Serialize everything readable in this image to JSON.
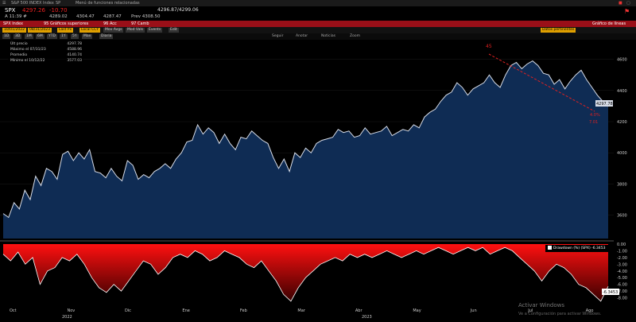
{
  "titlebar": {
    "items": [
      "S&P 500 INDEX Index",
      "SP",
      "Menú de funciones relacionadas"
    ]
  },
  "quote": {
    "ticker": "SPX",
    "last": "4297.26",
    "change": "-10.70",
    "high_low": "4296.87/4299.06",
    "line2_left": "A  11:39 #",
    "open": "4289.02",
    "high": "4304.47",
    "low": "4287.47",
    "prev": "Prev 4308.50",
    "flag_icon": "flag-icon"
  },
  "menubar": {
    "left_label": "SPX Index",
    "items": [
      "95 Gráficos superiores",
      "96 Acc",
      "97 Camb"
    ],
    "right_label": "Gráfico de líneas"
  },
  "toolbar": {
    "buttons": [
      "10/01/2022",
      "08/31/2023",
      "Last Px",
      "Local CCY",
      "Mov Avgs",
      "Mod Vals",
      "Events",
      "Edit"
    ],
    "periods": [
      "1D",
      "3D",
      "1M",
      "6M",
      "YTD",
      "1Y",
      "5Y",
      "Max",
      "Diaria"
    ],
    "right": "Datos pertinentes"
  },
  "toolbar2": {
    "items": [
      "Seguir",
      "Anotar",
      "Noticias",
      "Zoom"
    ]
  },
  "legend": {
    "rows": [
      {
        "label": "Últ precio",
        "value": "4297.78"
      },
      {
        "label": "Máximo el 07/31/23",
        "value": "4588.96"
      },
      {
        "label": "Promedio",
        "value": "4140.74"
      },
      {
        "label": "Mínimo el 10/12/22",
        "value": "3577.03"
      }
    ]
  },
  "drawdown_legend": "Drawdown (%) (SPX)  -6.3453",
  "annotations": {
    "peak": "45",
    "trough_a": "4.0%",
    "trough_b": "7.01"
  },
  "last_price_tag": "4297.78",
  "dd_last_tag": "-6.3453",
  "watermark": {
    "line1": "Activar Windows",
    "line2": "Ve a Configuración para activar Windows."
  },
  "colors": {
    "area": "#0f2c54",
    "line": "#d8dde8",
    "drawdown": "#e00000",
    "menu": "#9a0f18",
    "button": "#e0a000"
  },
  "chart_data": {
    "type": "area",
    "title": "",
    "x_tick_labels": [
      "Oct",
      "Nov",
      "Dic",
      "Ene",
      "Feb",
      "Mar",
      "Abr",
      "May",
      "Jun",
      "Jul",
      "Ago"
    ],
    "year_labels": [
      "2022",
      "2023"
    ],
    "ylim": [
      3450,
      4700
    ],
    "y_ticks": [
      3600,
      3800,
      4000,
      4200,
      4400,
      4600
    ],
    "series": [
      {
        "values": [
          3610,
          3585,
          3680,
          3640,
          3760,
          3700,
          3850,
          3790,
          3900,
          3880,
          3830,
          3990,
          4010,
          3950,
          4000,
          3960,
          4020,
          3880,
          3870,
          3840,
          3900,
          3850,
          3820,
          3950,
          3920,
          3830,
          3860,
          3840,
          3880,
          3900,
          3930,
          3900,
          3960,
          4000,
          4070,
          4080,
          4180,
          4120,
          4160,
          4130,
          4060,
          4120,
          4060,
          4020,
          4100,
          4090,
          4140,
          4110,
          4080,
          4060,
          3970,
          3900,
          3960,
          3880,
          4000,
          3970,
          4030,
          4000,
          4060,
          4080,
          4090,
          4100,
          4150,
          4130,
          4140,
          4100,
          4110,
          4160,
          4120,
          4130,
          4140,
          4170,
          4110,
          4130,
          4150,
          4140,
          4180,
          4160,
          4230,
          4260,
          4280,
          4330,
          4370,
          4390,
          4450,
          4420,
          4370,
          4410,
          4430,
          4450,
          4500,
          4450,
          4420,
          4500,
          4560,
          4580,
          4540,
          4570,
          4590,
          4560,
          4510,
          4500,
          4440,
          4470,
          4410,
          4460,
          4500,
          4530,
          4470,
          4420,
          4370,
          4330,
          4297
        ]
      },
      {
        "name": "Drawdown (%) (SPX)",
        "values": [
          -1.5,
          -2.5,
          -1.2,
          -3.0,
          -2.0,
          -6.0,
          -4.0,
          -3.5,
          -2.0,
          -2.5,
          -1.5,
          -3.0,
          -5.0,
          -6.5,
          -7.2,
          -6.0,
          -7.0,
          -5.5,
          -4.0,
          -2.5,
          -3.0,
          -4.5,
          -3.5,
          -2.0,
          -1.5,
          -2.0,
          -1.0,
          -1.5,
          -2.5,
          -2.0,
          -1.0,
          -1.5,
          -2.0,
          -3.0,
          -3.5,
          -2.5,
          -4.0,
          -5.5,
          -7.5,
          -8.5,
          -6.5,
          -5.0,
          -4.0,
          -3.0,
          -2.5,
          -2.0,
          -2.5,
          -1.5,
          -2.0,
          -1.5,
          -2.0,
          -1.5,
          -1.0,
          -1.5,
          -2.0,
          -1.5,
          -1.0,
          -1.5,
          -1.0,
          -0.5,
          -1.0,
          -1.5,
          -1.0,
          -0.5,
          -1.0,
          -0.5,
          -1.5,
          -1.0,
          -0.5,
          -1.0,
          -2.0,
          -3.0,
          -4.0,
          -5.5,
          -4.0,
          -3.0,
          -3.5,
          -4.5,
          -6.0,
          -6.5,
          -7.5,
          -8.5,
          -6.3
        ]
      }
    ],
    "dd_ylim": [
      -9,
      0
    ],
    "dd_ticks": [
      0,
      -1,
      -2,
      -3,
      -4,
      -5,
      -6,
      -7,
      -8
    ]
  }
}
